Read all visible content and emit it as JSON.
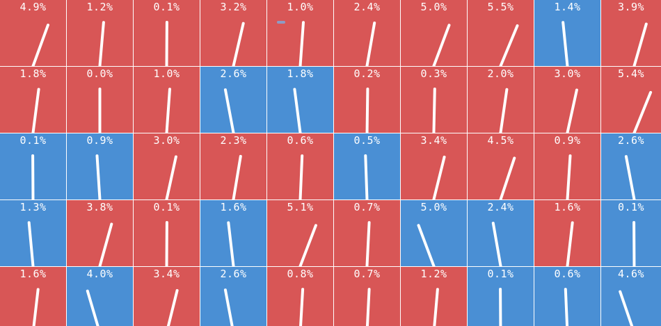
{
  "chart_data": {
    "type": "heatmap",
    "rows": 5,
    "columns": 10,
    "colors": {
      "up": "#d85656",
      "down": "#4a8fd4",
      "needle": "#ffffff",
      "gap": "#ffffff",
      "marker": "#8e9bc4"
    },
    "cells": [
      {
        "label": "4.9%",
        "value": 4.9,
        "direction": "up"
      },
      {
        "label": "1.2%",
        "value": 1.2,
        "direction": "up"
      },
      {
        "label": "0.1%",
        "value": 0.1,
        "direction": "up"
      },
      {
        "label": "3.2%",
        "value": 3.2,
        "direction": "up"
      },
      {
        "label": "1.0%",
        "value": 1.0,
        "direction": "up"
      },
      {
        "label": "2.4%",
        "value": 2.4,
        "direction": "up"
      },
      {
        "label": "5.0%",
        "value": 5.0,
        "direction": "up"
      },
      {
        "label": "5.5%",
        "value": 5.5,
        "direction": "up"
      },
      {
        "label": "1.4%",
        "value": 1.4,
        "direction": "down"
      },
      {
        "label": "3.9%",
        "value": 3.9,
        "direction": "up"
      },
      {
        "label": "1.8%",
        "value": 1.8,
        "direction": "up"
      },
      {
        "label": "0.0%",
        "value": 0.0,
        "direction": "up"
      },
      {
        "label": "1.0%",
        "value": 1.0,
        "direction": "up"
      },
      {
        "label": "2.6%",
        "value": 2.6,
        "direction": "down"
      },
      {
        "label": "1.8%",
        "value": 1.8,
        "direction": "down"
      },
      {
        "label": "0.2%",
        "value": 0.2,
        "direction": "up"
      },
      {
        "label": "0.3%",
        "value": 0.3,
        "direction": "up"
      },
      {
        "label": "2.0%",
        "value": 2.0,
        "direction": "up"
      },
      {
        "label": "3.0%",
        "value": 3.0,
        "direction": "up"
      },
      {
        "label": "5.4%",
        "value": 5.4,
        "direction": "up"
      },
      {
        "label": "0.1%",
        "value": 0.1,
        "direction": "down"
      },
      {
        "label": "0.9%",
        "value": 0.9,
        "direction": "down"
      },
      {
        "label": "3.0%",
        "value": 3.0,
        "direction": "up"
      },
      {
        "label": "2.3%",
        "value": 2.3,
        "direction": "up"
      },
      {
        "label": "0.6%",
        "value": 0.6,
        "direction": "up"
      },
      {
        "label": "0.5%",
        "value": 0.5,
        "direction": "down"
      },
      {
        "label": "3.4%",
        "value": 3.4,
        "direction": "up"
      },
      {
        "label": "4.5%",
        "value": 4.5,
        "direction": "up"
      },
      {
        "label": "0.9%",
        "value": 0.9,
        "direction": "up"
      },
      {
        "label": "2.6%",
        "value": 2.6,
        "direction": "down"
      },
      {
        "label": "1.3%",
        "value": 1.3,
        "direction": "down"
      },
      {
        "label": "3.8%",
        "value": 3.8,
        "direction": "up"
      },
      {
        "label": "0.1%",
        "value": 0.1,
        "direction": "up"
      },
      {
        "label": "1.6%",
        "value": 1.6,
        "direction": "down"
      },
      {
        "label": "5.1%",
        "value": 5.1,
        "direction": "up"
      },
      {
        "label": "0.7%",
        "value": 0.7,
        "direction": "up"
      },
      {
        "label": "5.0%",
        "value": 5.0,
        "direction": "down"
      },
      {
        "label": "2.4%",
        "value": 2.4,
        "direction": "down"
      },
      {
        "label": "1.6%",
        "value": 1.6,
        "direction": "up"
      },
      {
        "label": "0.1%",
        "value": 0.1,
        "direction": "down"
      },
      {
        "label": "1.6%",
        "value": 1.6,
        "direction": "up"
      },
      {
        "label": "4.0%",
        "value": 4.0,
        "direction": "down"
      },
      {
        "label": "3.4%",
        "value": 3.4,
        "direction": "up"
      },
      {
        "label": "2.6%",
        "value": 2.6,
        "direction": "down"
      },
      {
        "label": "0.8%",
        "value": 0.8,
        "direction": "up"
      },
      {
        "label": "0.7%",
        "value": 0.7,
        "direction": "up"
      },
      {
        "label": "1.2%",
        "value": 1.2,
        "direction": "up"
      },
      {
        "label": "0.1%",
        "value": 0.1,
        "direction": "down"
      },
      {
        "label": "0.6%",
        "value": 0.6,
        "direction": "down"
      },
      {
        "label": "4.6%",
        "value": 4.6,
        "direction": "down"
      }
    ]
  }
}
